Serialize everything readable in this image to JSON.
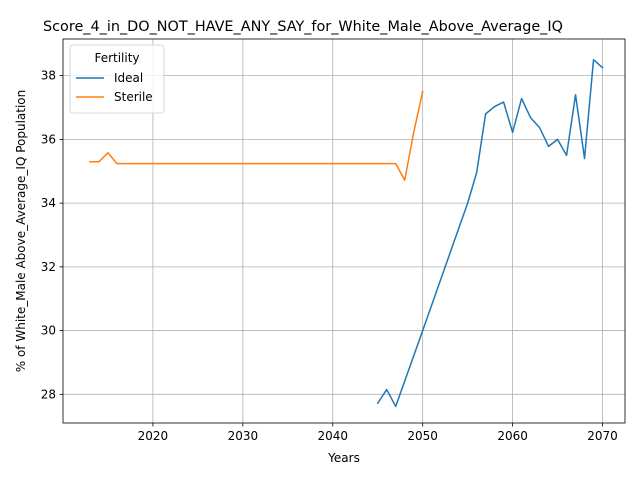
{
  "chart_data": {
    "type": "line",
    "title": "Score_4_in_DO_NOT_HAVE_ANY_SAY_for_White_Male_Above_Average_IQ",
    "xlabel": "Years",
    "ylabel": "% of White_Male Above_Average_IQ Population",
    "xlim": [
      2010,
      2072.5
    ],
    "ylim": [
      27.1,
      39.15
    ],
    "xticks": [
      2020,
      2030,
      2040,
      2050,
      2060,
      2070
    ],
    "xtick_labels": [
      "2020",
      "2030",
      "2040",
      "2050",
      "2060",
      "2070"
    ],
    "yticks": [
      28,
      30,
      32,
      34,
      36,
      38
    ],
    "ytick_labels": [
      "28",
      "30",
      "32",
      "34",
      "36",
      "38"
    ],
    "grid": true,
    "legend": {
      "title": "Fertility",
      "placement": "top-left"
    },
    "series": [
      {
        "name": "Ideal",
        "color": "#1f77b4",
        "x": [
          2045,
          2046,
          2047,
          2050,
          2055,
          2056,
          2057,
          2058,
          2059,
          2060,
          2061,
          2062,
          2063,
          2064,
          2065,
          2066,
          2067,
          2068,
          2069,
          2070
        ],
        "y": [
          27.72,
          28.15,
          27.62,
          30.0,
          34.0,
          34.95,
          36.8,
          37.03,
          37.17,
          36.22,
          37.28,
          36.68,
          36.37,
          35.78,
          36.0,
          35.5,
          37.4,
          35.4,
          38.5,
          38.25
        ]
      },
      {
        "name": "Sterile",
        "color": "#ff7f0e",
        "x": [
          2013,
          2014,
          2015,
          2016,
          2020,
          2030,
          2040,
          2047,
          2048,
          2049,
          2050
        ],
        "y": [
          35.3,
          35.3,
          35.58,
          35.24,
          35.24,
          35.24,
          35.24,
          35.24,
          34.72,
          36.22,
          37.5
        ]
      }
    ]
  }
}
